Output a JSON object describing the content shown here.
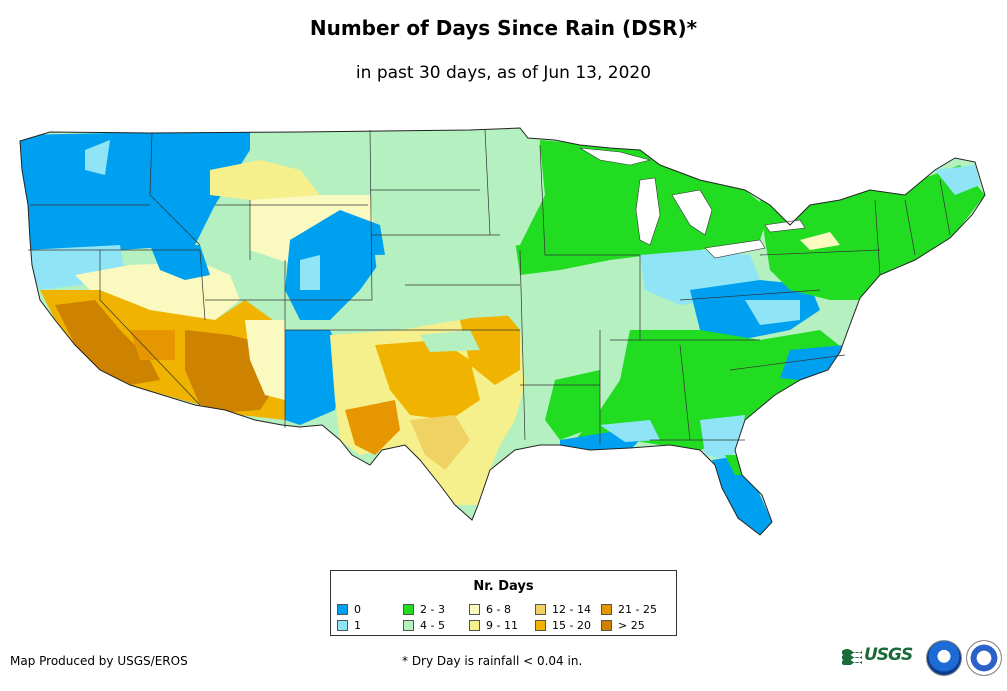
{
  "title": "Number of Days Since Rain (DSR)*",
  "subtitle": "in past 30 days, as of Jun 13, 2020",
  "map": {
    "region": "Contiguous United States",
    "class_colors": {
      "0": "#00a0f0",
      "1": "#8fe4f5",
      "2 - 3": "#22dc22",
      "4 - 5": "#b4f0c0",
      "6 - 8": "#fafac0",
      "9 - 11": "#f5f08c",
      "12 - 14": "#f0d264",
      "15 - 20": "#f0b400",
      "21 - 25": "#e69600",
      "> 25": "#cd8200"
    }
  },
  "legend": {
    "title": "Nr. Days",
    "items": [
      {
        "label": "0",
        "color": "#00a0f0"
      },
      {
        "label": "1",
        "color": "#8fe4f5"
      },
      {
        "label": "2 - 3",
        "color": "#22dc22"
      },
      {
        "label": "4 - 5",
        "color": "#b4f0c0"
      },
      {
        "label": "6 - 8",
        "color": "#fafac0"
      },
      {
        "label": "9 - 11",
        "color": "#f5f08c"
      },
      {
        "label": "12 - 14",
        "color": "#f0d264"
      },
      {
        "label": "15 - 20",
        "color": "#f0b400"
      },
      {
        "label": "21 - 25",
        "color": "#e69600"
      },
      {
        "label": "> 25",
        "color": "#cd8200"
      }
    ]
  },
  "footer": {
    "credit": "Map Produced by USGS/EROS",
    "footnote": "* Dry Day is rainfall < 0.04 in."
  },
  "logos": {
    "usgs_text": "USGS",
    "usgs_icon": "usgs-logo-icon",
    "noaa_icon": "noaa-logo-icon",
    "nws_icon": "nws-logo-icon"
  }
}
